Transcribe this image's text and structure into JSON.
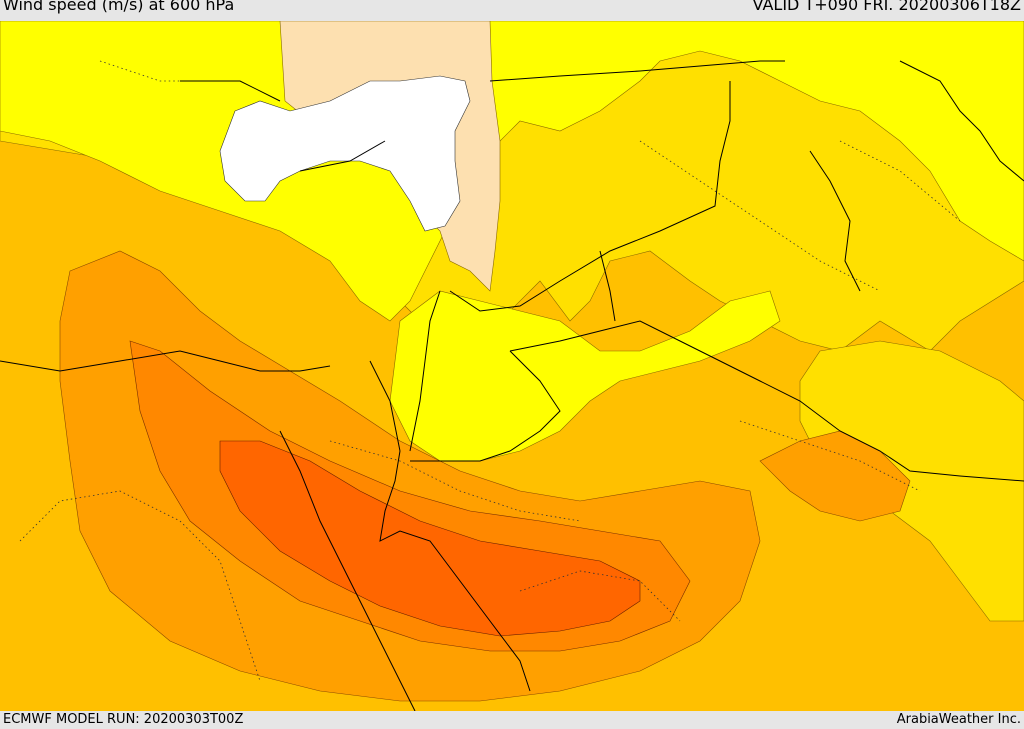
{
  "header": {
    "title": "Wind speed (m/s) at 600 hPa",
    "valid": "VALID T+090 FRI. 20200306T18Z"
  },
  "footer": {
    "model_run": "ECMWF MODEL RUN: 20200303T00Z",
    "credit": "ArabiaWeather Inc."
  },
  "colors": {
    "weakest": "#ffff00",
    "weak": "#ffe000",
    "moderate": "#ffc000",
    "strong": "#ffa000",
    "stronger": "#ff8800",
    "strongest": "#ff6600",
    "no_data_land": "#fde0b0",
    "sea_no_data": "#ffffff"
  }
}
